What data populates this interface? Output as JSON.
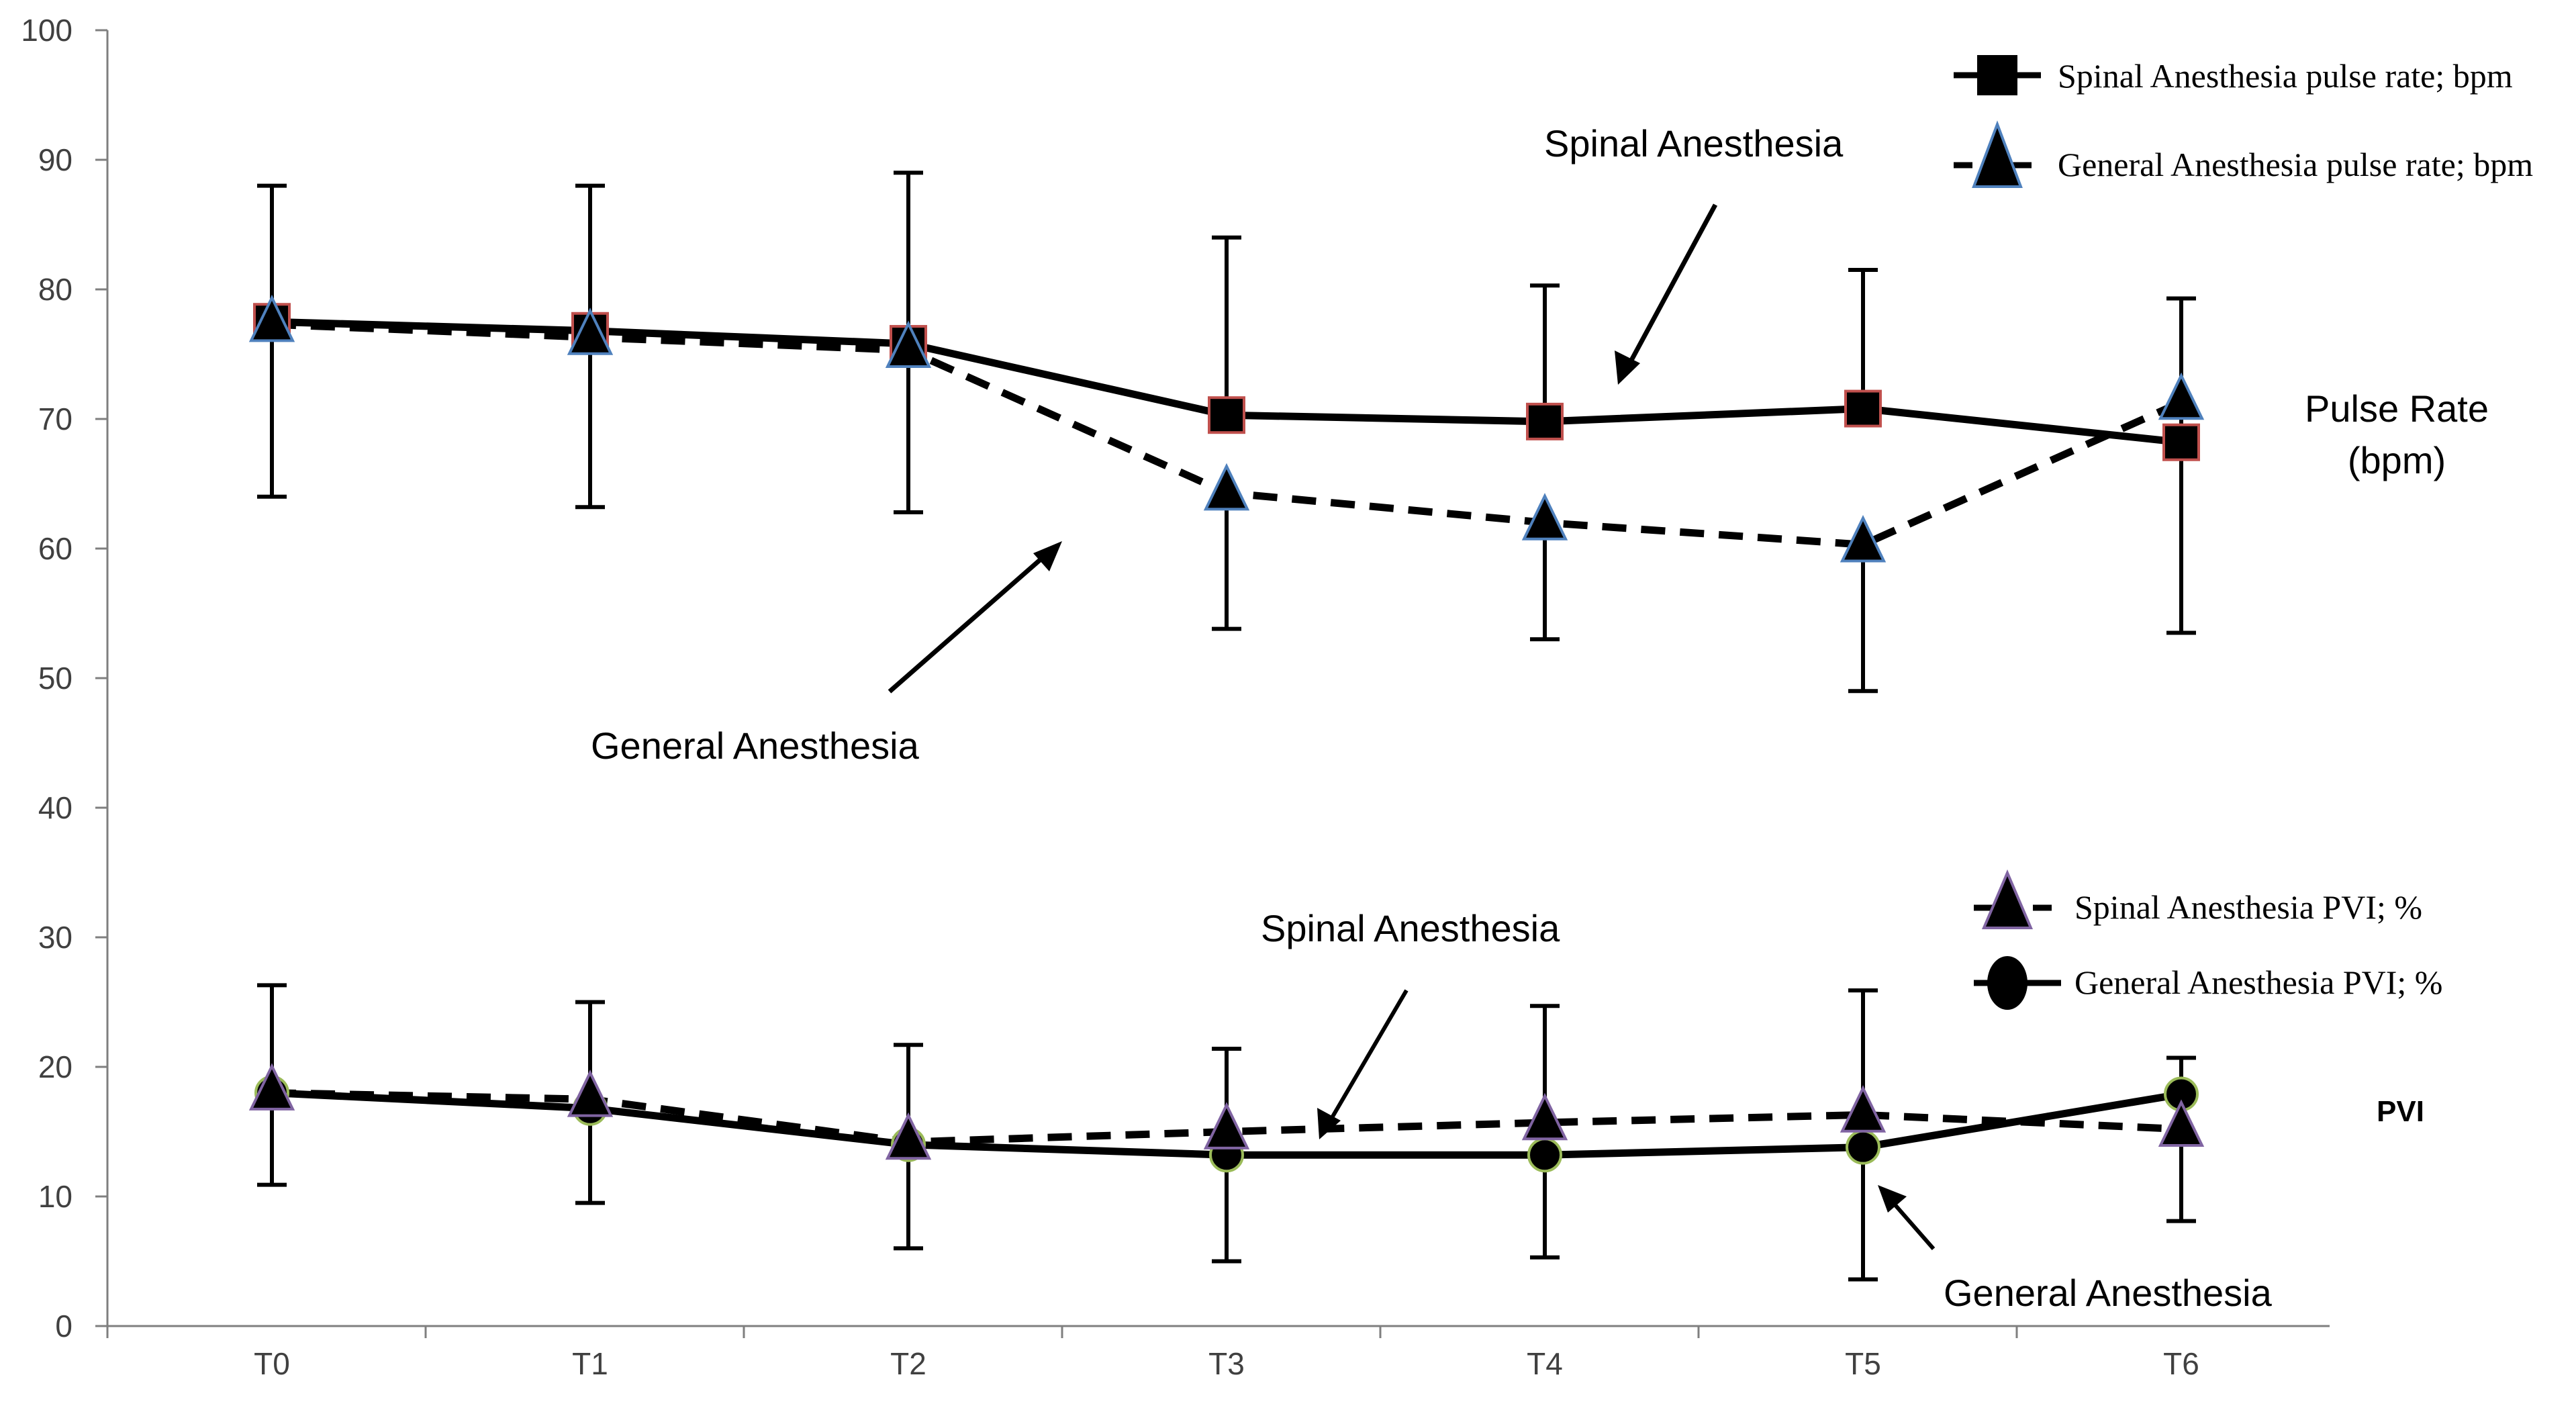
{
  "chart_data": {
    "type": "line",
    "title": "",
    "xlabel": "",
    "ylabel": "",
    "categories": [
      "T0",
      "T1",
      "T2",
      "T3",
      "T4",
      "T5",
      "T6"
    ],
    "ylim": [
      0,
      100
    ],
    "yticks": [
      0,
      10,
      20,
      30,
      40,
      50,
      60,
      70,
      80,
      90,
      100
    ],
    "grid": false,
    "series": [
      {
        "name": "Spinal Anesthesia pulse rate; bpm",
        "group": "pulse",
        "line": "solid",
        "marker": "square",
        "values": [
          77.5,
          76.8,
          75.8,
          70.3,
          69.8,
          70.8,
          68.2
        ],
        "error_upper": [
          88,
          88,
          89,
          84,
          80.3,
          81.5,
          79.3
        ],
        "error_lower": [
          64,
          63.2,
          62.8,
          null,
          null,
          null,
          53.5
        ]
      },
      {
        "name": "General Anesthesia pulse rate; bpm",
        "group": "pulse",
        "line": "dashed",
        "marker": "triangle",
        "values": [
          77.3,
          76.3,
          75.3,
          64.3,
          62,
          60.3,
          71.3
        ],
        "error_upper": [
          null,
          null,
          null,
          null,
          null,
          null,
          null
        ],
        "error_lower": [
          null,
          null,
          null,
          53.8,
          53,
          49,
          null
        ]
      },
      {
        "name": "Spinal Anesthesia PVI; %",
        "group": "pvi",
        "line": "dashed",
        "marker": "triangle",
        "values": [
          18,
          17.5,
          14.2,
          15,
          15.7,
          16.3,
          15.2
        ],
        "error_upper": [
          26.3,
          25,
          21.7,
          21.4,
          24.7,
          25.9,
          20.7
        ],
        "error_lower": [
          null,
          null,
          null,
          null,
          null,
          null,
          8.1
        ]
      },
      {
        "name": "General Anesthesia PVI; %",
        "group": "pvi",
        "line": "solid",
        "marker": "circle",
        "values": [
          18,
          16.8,
          14,
          13.2,
          13.2,
          13.8,
          17.9
        ],
        "error_upper": [
          null,
          null,
          null,
          null,
          null,
          null,
          null
        ],
        "error_lower": [
          10.9,
          9.5,
          6,
          5,
          5.3,
          3.6,
          null
        ]
      }
    ],
    "legends": [
      {
        "placement": "top-right",
        "entries": [
          "Spinal Anesthesia pulse rate; bpm",
          "General Anesthesia pulse rate; bpm"
        ]
      },
      {
        "placement": "lower-right",
        "entries": [
          "Spinal Anesthesia PVI; %",
          "General Anesthesia PVI; %"
        ]
      }
    ],
    "annotations": {
      "pulse_spinal": "Spinal Anesthesia",
      "pulse_general": "General Anesthesia",
      "pvi_spinal": "Spinal Anesthesia",
      "pvi_general": "General Anesthesia",
      "pulse_rate_label_line1": "Pulse Rate",
      "pulse_rate_label_line2": "(bpm)",
      "pvi_label": "PVI"
    }
  },
  "colors": {
    "axis": "#7f7f7f",
    "line": "#000000",
    "square_outline": "#c0504d",
    "triangle_outline": "#4f81bd",
    "pvi_triangle_outline": "#8064a2",
    "circle_outline": "#9bbb59"
  }
}
